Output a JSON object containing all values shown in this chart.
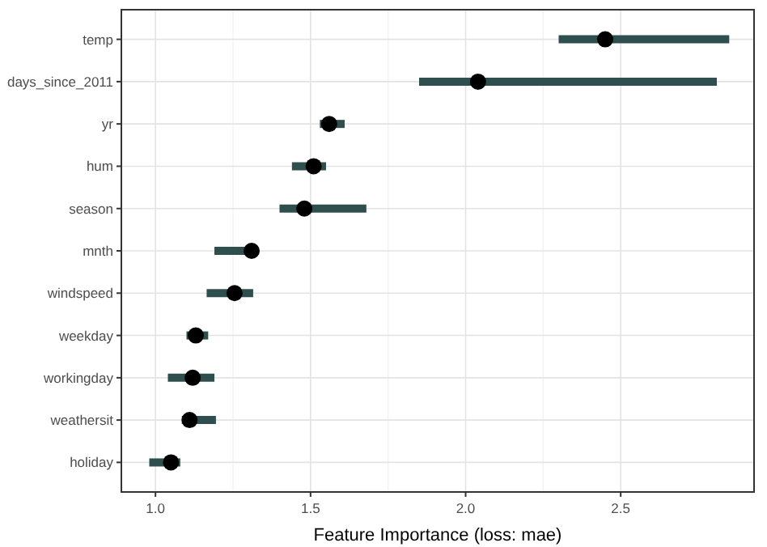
{
  "chart_data": {
    "type": "scatter",
    "orientation": "horizontal",
    "xlabel": "Feature Importance (loss: mae)",
    "categories": [
      "temp",
      "days_since_2011",
      "yr",
      "hum",
      "season",
      "mnth",
      "windspeed",
      "weekday",
      "workingday",
      "weathersit",
      "holiday"
    ],
    "series": [
      {
        "color": "#000000",
        "values": [
          2.45,
          2.04,
          1.56,
          1.51,
          1.48,
          1.31,
          1.255,
          1.13,
          1.12,
          1.11,
          1.05
        ],
        "errors": [
          [
            2.3,
            2.85
          ],
          [
            1.85,
            2.81
          ],
          [
            1.53,
            1.61
          ],
          [
            1.44,
            1.55
          ],
          [
            1.4,
            1.68
          ],
          [
            1.19,
            1.31
          ],
          [
            1.165,
            1.315
          ],
          [
            1.1,
            1.17
          ],
          [
            1.04,
            1.19
          ],
          [
            1.085,
            1.195
          ],
          [
            0.98,
            1.08
          ]
        ]
      }
    ],
    "xlim": [
      0.89,
      2.93
    ],
    "xticks": [
      {
        "value": 1,
        "label": "1.0"
      },
      {
        "value": 1.5,
        "label": "1.5"
      },
      {
        "value": 2,
        "label": "2.0"
      },
      {
        "value": 2.5,
        "label": "2.5"
      }
    ],
    "grid": true,
    "marker": "circle"
  }
}
